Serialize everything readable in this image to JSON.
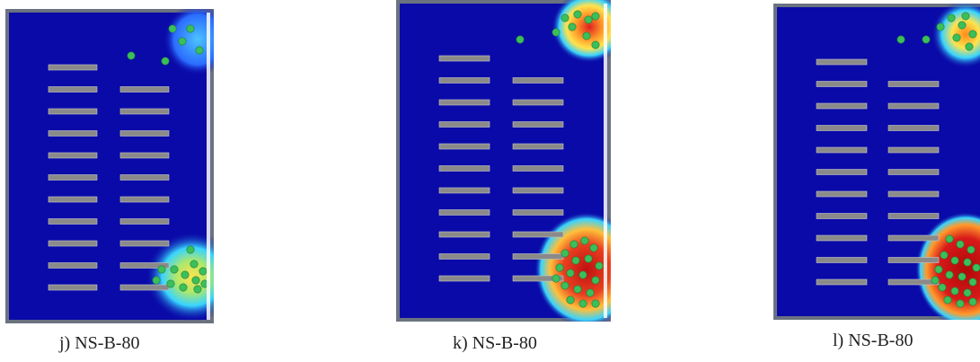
{
  "panels": [
    {
      "caption": "j) NS-B-80",
      "left_column_bars": 11,
      "right_column_bars": 10,
      "background_color": "#0a0aa8",
      "frame_color": "#6b7280",
      "bar_color": "#8a8a8a",
      "particle_color": "#3bbf5a",
      "hotspot_intensity": 0.4
    },
    {
      "caption": "k) NS-B-80",
      "left_column_bars": 11,
      "right_column_bars": 10,
      "background_color": "#0a0aa8",
      "frame_color": "#6b7280",
      "bar_color": "#8a8a8a",
      "particle_color": "#3bbf5a",
      "hotspot_intensity": 0.8
    },
    {
      "caption": "l) NS-B-80",
      "left_column_bars": 11,
      "right_column_bars": 10,
      "background_color": "#0a0aa8",
      "frame_color": "#6b7280",
      "bar_color": "#8a8a8a",
      "particle_color": "#3bbf5a",
      "hotspot_intensity": 1.0
    }
  ]
}
